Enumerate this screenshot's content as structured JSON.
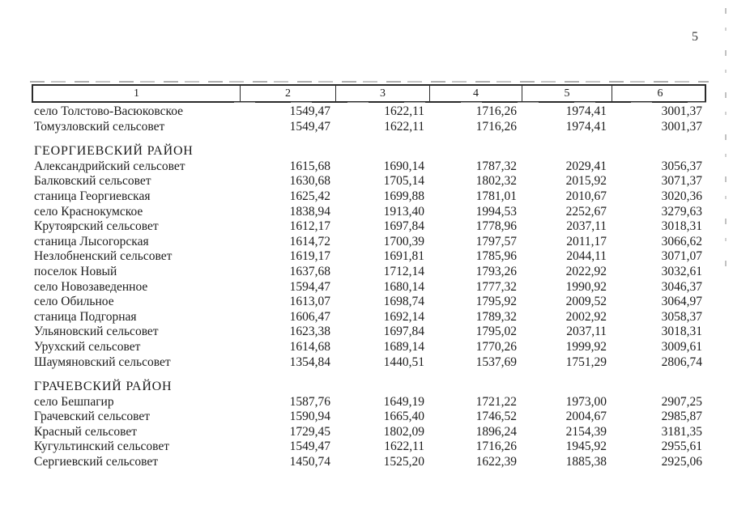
{
  "page": {
    "number": "5"
  },
  "table": {
    "columns": [
      "1",
      "2",
      "3",
      "4",
      "5",
      "6"
    ],
    "groups": [
      {
        "title": "",
        "rows": [
          [
            "село Толстово-Васюковское",
            "1549,47",
            "1622,11",
            "1716,26",
            "1974,41",
            "3001,37"
          ],
          [
            "Томузловский сельсовет",
            "1549,47",
            "1622,11",
            "1716,26",
            "1974,41",
            "3001,37"
          ]
        ]
      },
      {
        "title": "ГЕОРГИЕВСКИЙ РАЙОН",
        "rows": [
          [
            "Александрийский сельсовет",
            "1615,68",
            "1690,14",
            "1787,32",
            "2029,41",
            "3056,37"
          ],
          [
            "Балковский сельсовет",
            "1630,68",
            "1705,14",
            "1802,32",
            "2015,92",
            "3071,37"
          ],
          [
            "станица Георгиевская",
            "1625,42",
            "1699,88",
            "1781,01",
            "2010,67",
            "3020,36"
          ],
          [
            "село Краснокумское",
            "1838,94",
            "1913,40",
            "1994,53",
            "2252,67",
            "3279,63"
          ],
          [
            "Крутоярский сельсовет",
            "1612,17",
            "1697,84",
            "1778,96",
            "2037,11",
            "3018,31"
          ],
          [
            "станица Лысогорская",
            "1614,72",
            "1700,39",
            "1797,57",
            "2011,17",
            "3066,62"
          ],
          [
            "Незлобненский сельсовет",
            "1619,17",
            "1691,81",
            "1785,96",
            "2044,11",
            "3071,07"
          ],
          [
            "поселок Новый",
            "1637,68",
            "1712,14",
            "1793,26",
            "2022,92",
            "3032,61"
          ],
          [
            "село Новозаведенное",
            "1594,47",
            "1680,14",
            "1777,32",
            "1990,92",
            "3046,37"
          ],
          [
            "село Обильное",
            "1613,07",
            "1698,74",
            "1795,92",
            "2009,52",
            "3064,97"
          ],
          [
            "станица Подгорная",
            "1606,47",
            "1692,14",
            "1789,32",
            "2002,92",
            "3058,37"
          ],
          [
            "Ульяновский сельсовет",
            "1623,38",
            "1697,84",
            "1795,02",
            "2037,11",
            "3018,31"
          ],
          [
            "Урухский сельсовет",
            "1614,68",
            "1689,14",
            "1770,26",
            "1999,92",
            "3009,61"
          ],
          [
            "Шаумяновский сельсовет",
            "1354,84",
            "1440,51",
            "1537,69",
            "1751,29",
            "2806,74"
          ]
        ]
      },
      {
        "title": "ГРАЧЕВСКИЙ РАЙОН",
        "rows": [
          [
            "село Бешпагир",
            "1587,76",
            "1649,19",
            "1721,22",
            "1973,00",
            "2907,25"
          ],
          [
            "Грачевский сельсовет",
            "1590,94",
            "1665,40",
            "1746,52",
            "2004,67",
            "2985,87"
          ],
          [
            "Красный сельсовет",
            "1729,45",
            "1802,09",
            "1896,24",
            "2154,39",
            "3181,35"
          ],
          [
            "Кугультинский сельсовет",
            "1549,47",
            "1622,11",
            "1716,26",
            "1945,92",
            "2955,61"
          ],
          [
            "Сергиевский сельсовет",
            "1450,74",
            "1525,20",
            "1622,39",
            "1885,38",
            "2925,06"
          ]
        ]
      }
    ]
  }
}
